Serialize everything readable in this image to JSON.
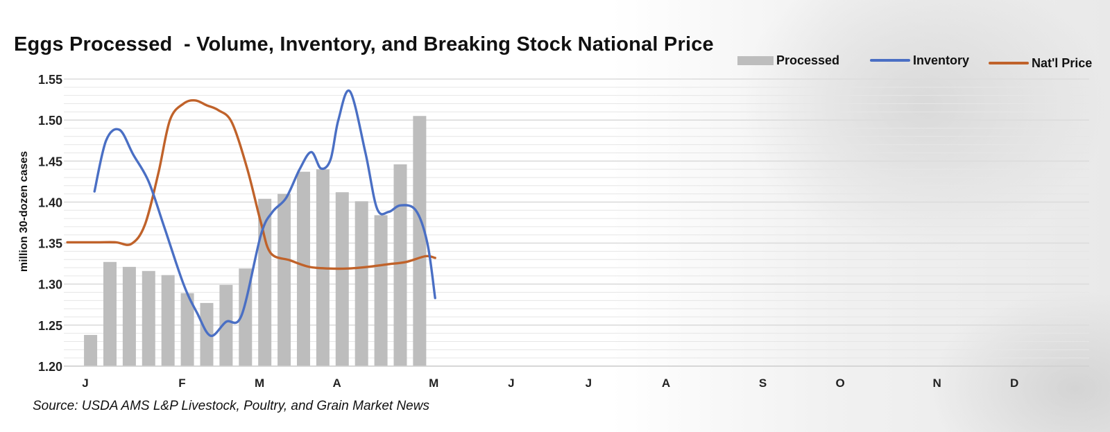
{
  "chart_data": {
    "type": "bar",
    "title": "Eggs Processed  - Volume, Inventory, and Breaking Stock National Price",
    "ylabel": "million 30-dozen cases",
    "xlabel": "",
    "ylim": [
      1.2,
      1.55
    ],
    "yticks": [
      "1.20",
      "1.25",
      "1.30",
      "1.35",
      "1.40",
      "1.45",
      "1.50",
      "1.55"
    ],
    "ytick_values": [
      1.2,
      1.25,
      1.3,
      1.35,
      1.4,
      1.45,
      1.5,
      1.55
    ],
    "x_month_labels": [
      "J",
      "F",
      "M",
      "A",
      "M",
      "J",
      "J",
      "A",
      "S",
      "O",
      "N",
      "D"
    ],
    "x_month_positions": [
      0,
      5,
      9,
      13,
      18,
      22,
      26,
      30,
      35,
      39,
      44,
      48
    ],
    "week_slots": 50,
    "grid": true,
    "legend_position": "top-right",
    "colors": {
      "processed": "#bdbdbd",
      "inventory": "#4a6fc4",
      "price": "#c0622a",
      "grid": "#dcdcdc"
    },
    "series": [
      {
        "name": "Processed",
        "kind": "bar",
        "x": [
          0.2,
          1.2,
          2.2,
          3.2,
          4.2,
          5.2,
          6.2,
          7.2,
          8.2,
          9.2,
          10.2,
          11.2,
          12.2,
          13.2,
          14.2,
          15.2,
          16.2,
          17.2
        ],
        "values": [
          1.238,
          1.327,
          1.321,
          1.316,
          1.311,
          1.289,
          1.277,
          1.299,
          1.319,
          1.404,
          1.41,
          1.437,
          1.44,
          1.412,
          1.401,
          1.384,
          1.446,
          1.505
        ]
      },
      {
        "name": "Inventory",
        "kind": "line",
        "x": [
          0.4,
          1.0,
          1.7,
          2.4,
          3.2,
          4.0,
          5.0,
          5.7,
          6.4,
          7.2,
          8.0,
          9.0,
          9.6,
          10.3,
          11.0,
          11.6,
          12.1,
          12.6,
          13.0,
          13.6,
          14.4,
          15.0,
          15.6,
          16.2,
          17.0,
          17.6,
          18.0
        ],
        "values": [
          1.413,
          1.475,
          1.488,
          1.458,
          1.425,
          1.37,
          1.3,
          1.265,
          1.237,
          1.254,
          1.262,
          1.36,
          1.388,
          1.405,
          1.44,
          1.461,
          1.441,
          1.452,
          1.5,
          1.535,
          1.46,
          1.392,
          1.388,
          1.396,
          1.39,
          1.35,
          1.283
        ]
      },
      {
        "name": "Nat'l Price",
        "kind": "line",
        "x": [
          -1.0,
          0.5,
          1.5,
          2.3,
          3.0,
          3.7,
          4.3,
          5.0,
          5.6,
          6.2,
          6.8,
          7.5,
          8.3,
          9.0,
          9.5,
          10.5,
          11.5,
          12.5,
          13.5,
          14.5,
          15.5,
          16.5,
          17.5,
          18.0
        ],
        "values": [
          1.351,
          1.351,
          1.351,
          1.349,
          1.372,
          1.435,
          1.5,
          1.52,
          1.524,
          1.518,
          1.512,
          1.497,
          1.44,
          1.375,
          1.338,
          1.329,
          1.321,
          1.319,
          1.319,
          1.321,
          1.324,
          1.327,
          1.334,
          1.332
        ]
      }
    ],
    "source": "Source: USDA AMS L&P Livestock, Poultry, and Grain Market News"
  }
}
